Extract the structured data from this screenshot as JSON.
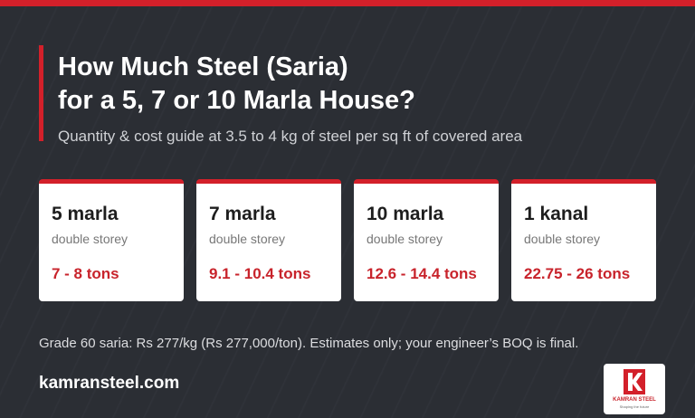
{
  "header": {
    "title_lines": [
      "How Much Steel (Saria)",
      "for a 5, 7 or 10 Marla House?"
    ],
    "subtitle": "Quantity & cost guide at 3.5 to 4 kg of steel per sq ft of covered area"
  },
  "cards": [
    {
      "title": "5 marla",
      "subtitle": "double storey",
      "value": "7 - 8 tons"
    },
    {
      "title": "7 marla",
      "subtitle": "double storey",
      "value": "9.1 - 10.4 tons"
    },
    {
      "title": "10 marla",
      "subtitle": "double storey",
      "value": "12.6 - 14.4 tons"
    },
    {
      "title": "1 kanal",
      "subtitle": "double storey",
      "value": "22.75 - 26 tons"
    }
  ],
  "footnote": "Grade 60 saria: Rs 277/kg (Rs 277,000/ton). Estimates only; your engineer’s BOQ is final.",
  "website": "kamransteel.com",
  "logo": {
    "name": "KAMRAN STEEL",
    "tagline": "Shaping the future"
  }
}
